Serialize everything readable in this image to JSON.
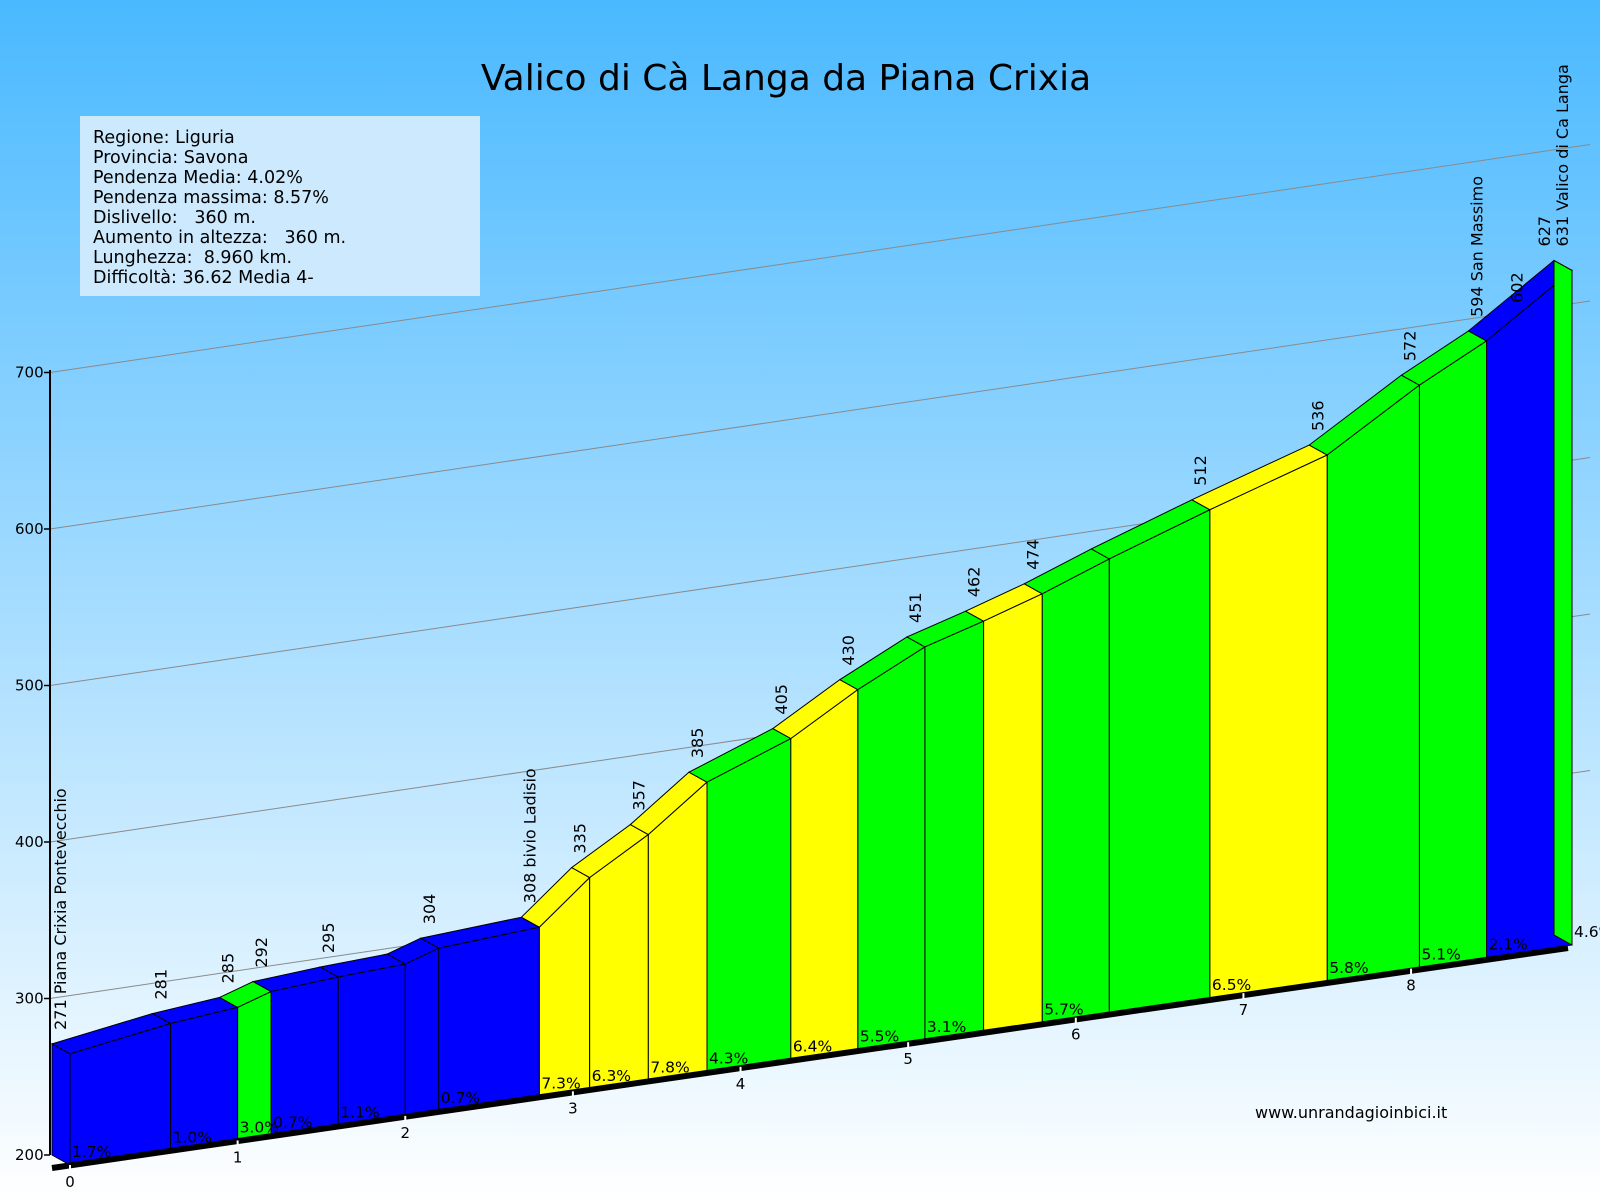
{
  "colors": {
    "sky_top": "#4ab9ff",
    "sky_bottom": "#ffffff",
    "low": "#0000ff",
    "medium": "#00ff00",
    "high": "#ffff00",
    "info_box": "#cce9fd"
  },
  "chart_data": {
    "type": "area",
    "title": "Valico di Cà Langa da Piana Crixia",
    "info": [
      "Regione: Liguria",
      "Provincia: Savona",
      "Pendenza Media: 4.02%",
      "Pendenza massima: 8.57%",
      "Dislivello:   360 m.",
      "Aumento in altezza:   360 m.",
      "Lunghezza:  8.960 km.",
      "Difficoltà: 36.62 Media 4-"
    ],
    "y_ticks": [
      200,
      300,
      400,
      500,
      600,
      700
    ],
    "ylim": [
      200,
      700
    ],
    "km_ticks": [
      "0",
      "1",
      "2",
      "3",
      "4",
      "5",
      "6",
      "7",
      "8"
    ],
    "grid": true,
    "profile": {
      "km": [
        0,
        0.6,
        1.0,
        1.2,
        1.6,
        2.0,
        2.2,
        2.8,
        3.1,
        3.45,
        3.8,
        4.3,
        4.7,
        5.1,
        5.45,
        5.8,
        6.2,
        6.8,
        7.5,
        8.05,
        8.45,
        8.96
      ],
      "elevation": [
        271,
        281,
        285,
        292,
        295,
        297,
        304,
        308,
        335,
        357,
        385,
        405,
        430,
        451,
        462,
        474,
        490,
        512,
        536,
        572,
        594,
        631
      ]
    },
    "segments": [
      {
        "grade": "1.7%",
        "category": "low"
      },
      {
        "grade": "1.0%",
        "category": "low"
      },
      {
        "grade": "3.0%",
        "category": "medium"
      },
      {
        "grade": "0.7%",
        "category": "low"
      },
      {
        "grade": "1.1%",
        "category": "low"
      },
      {
        "grade": "",
        "category": "low"
      },
      {
        "grade": "0.7%",
        "category": "low"
      },
      {
        "grade": "7.3%",
        "category": "high"
      },
      {
        "grade": "6.3%",
        "category": "high"
      },
      {
        "grade": "7.8%",
        "category": "high"
      },
      {
        "grade": "4.3%",
        "category": "medium"
      },
      {
        "grade": "6.4%",
        "category": "high"
      },
      {
        "grade": "5.5%",
        "category": "medium"
      },
      {
        "grade": "3.1%",
        "category": "medium"
      },
      {
        "grade": "",
        "category": "high"
      },
      {
        "grade": "5.7%",
        "category": "medium"
      },
      {
        "grade": "",
        "category": "medium"
      },
      {
        "grade": "6.5%",
        "category": "high"
      },
      {
        "grade": "5.8%",
        "category": "medium"
      },
      {
        "grade": "5.1%",
        "category": "medium"
      },
      {
        "grade": "2.1%",
        "category": "low"
      },
      {
        "grade": "4.6%",
        "category": "medium"
      }
    ],
    "point_labels": [
      {
        "index": 0,
        "text": "271 Piana Crixia Pontevecchio"
      },
      {
        "index": 1,
        "text": "281"
      },
      {
        "index": 2,
        "text": "285"
      },
      {
        "index": 3,
        "text": "292"
      },
      {
        "index": 4,
        "text": "295"
      },
      {
        "index": 6,
        "text": "304"
      },
      {
        "index": 7,
        "text": "308 bivio Ladisio"
      },
      {
        "index": 8,
        "text": "335"
      },
      {
        "index": 9,
        "text": "357"
      },
      {
        "index": 10,
        "text": "385"
      },
      {
        "index": 11,
        "text": "405"
      },
      {
        "index": 12,
        "text": "430"
      },
      {
        "index": 13,
        "text": "451"
      },
      {
        "index": 14,
        "text": "462"
      },
      {
        "index": 15,
        "text": "474"
      },
      {
        "index": 17,
        "text": "512"
      },
      {
        "index": 18,
        "text": "536"
      },
      {
        "index": 19,
        "text": "572"
      },
      {
        "index": 20,
        "text": "594 San Massimo"
      },
      {
        "index": 20,
        "text": "602",
        "offset": "after"
      },
      {
        "index": 21,
        "text": "627",
        "offset": "before"
      },
      {
        "index": 21,
        "text": "631 Valico di Ca Langa"
      }
    ],
    "website": "www.unrandagioinbici.it"
  }
}
